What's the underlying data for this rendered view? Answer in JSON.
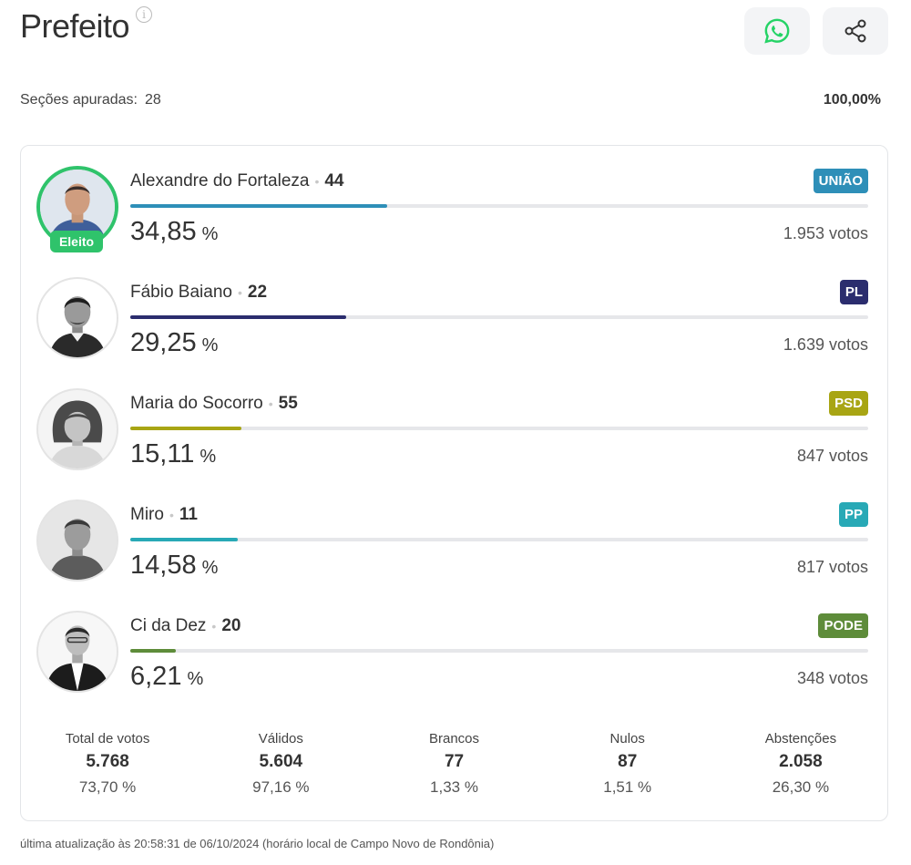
{
  "header": {
    "title": "Prefeito",
    "info_icon": "i",
    "whatsapp_color": "#25d366"
  },
  "status": {
    "sections_label": "Seções apuradas:",
    "sections_value": "28",
    "percent_counted": "100,00%"
  },
  "candidates": [
    {
      "name": "Alexandre do Fortaleza",
      "number": "44",
      "party": "UNIÃO",
      "party_color": "#2e8fb8",
      "bar_color": "#2e8fb8",
      "percent": "34,85",
      "percent_value": 34.85,
      "unit": "%",
      "votes": "1.953 votos",
      "elected": true,
      "elected_label": "Eleito"
    },
    {
      "name": "Fábio Baiano",
      "number": "22",
      "party": "PL",
      "party_color": "#2b2d6e",
      "bar_color": "#2b2d6e",
      "percent": "29,25",
      "percent_value": 29.25,
      "unit": "%",
      "votes": "1.639 votos",
      "elected": false
    },
    {
      "name": "Maria do Socorro",
      "number": "55",
      "party": "PSD",
      "party_color": "#a8a514",
      "bar_color": "#a8a514",
      "percent": "15,11",
      "percent_value": 15.11,
      "unit": "%",
      "votes": "847 votos",
      "elected": false
    },
    {
      "name": "Miro",
      "number": "11",
      "party": "PP",
      "party_color": "#28a9b6",
      "bar_color": "#28a9b6",
      "percent": "14,58",
      "percent_value": 14.58,
      "unit": "%",
      "votes": "817 votos",
      "elected": false
    },
    {
      "name": "Ci da Dez",
      "number": "20",
      "party": "PODE",
      "party_color": "#5e8c3a",
      "bar_color": "#5e8c3a",
      "percent": "6,21",
      "percent_value": 6.21,
      "unit": "%",
      "votes": "348 votos",
      "elected": false
    }
  ],
  "summary": [
    {
      "label": "Total de votos",
      "value": "5.768",
      "pct": "73,70 %"
    },
    {
      "label": "Válidos",
      "value": "5.604",
      "pct": "97,16 %"
    },
    {
      "label": "Brancos",
      "value": "77",
      "pct": "1,33 %"
    },
    {
      "label": "Nulos",
      "value": "87",
      "pct": "1,51 %"
    },
    {
      "label": "Abstenções",
      "value": "2.058",
      "pct": "26,30 %"
    }
  ],
  "footer": {
    "text": "última atualização às 20:58:31 de 06/10/2024 (horário local de Campo Novo de Rondônia)"
  }
}
